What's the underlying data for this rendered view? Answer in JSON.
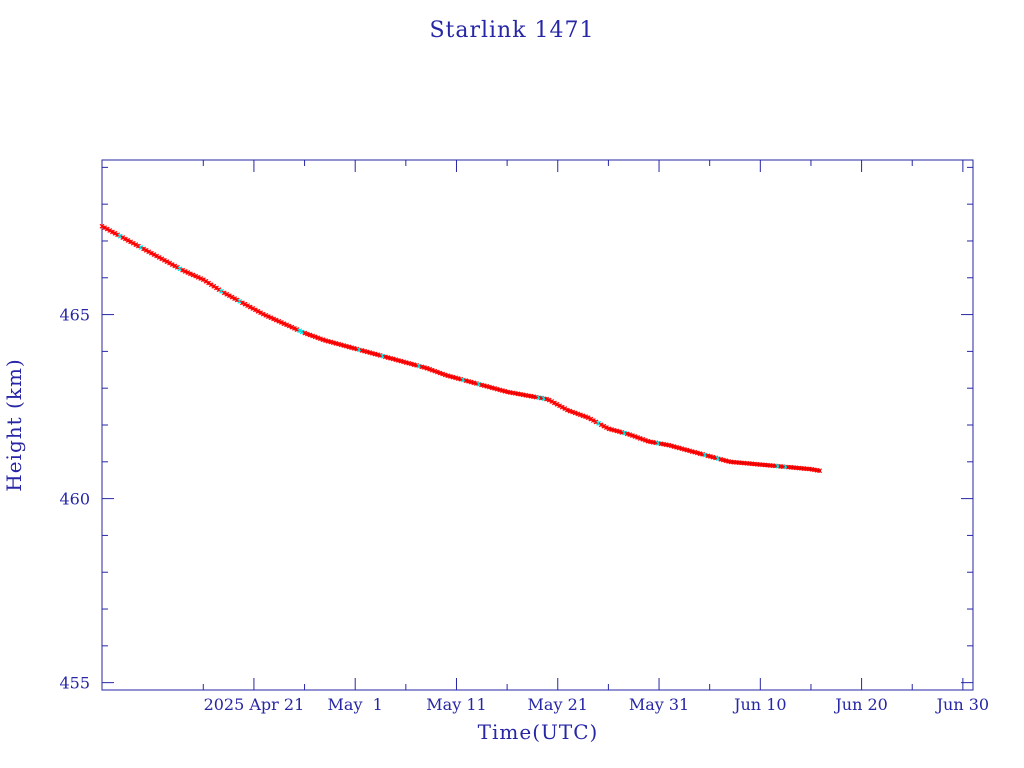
{
  "chart_data": {
    "type": "line",
    "title": "Starlink 1471",
    "xlabel": "Time(UTC)",
    "ylabel": "Height (km)",
    "xlim": [
      "2025-04-06",
      "2025-07-01"
    ],
    "ylim": [
      454.8,
      469.2
    ],
    "x_ticks": [
      {
        "date": "2025-04-21",
        "label": "2025 Apr 21"
      },
      {
        "date": "2025-05-01",
        "label": "May  1"
      },
      {
        "date": "2025-05-11",
        "label": "May 11"
      },
      {
        "date": "2025-05-21",
        "label": "May 21"
      },
      {
        "date": "2025-05-31",
        "label": "May 31"
      },
      {
        "date": "2025-06-10",
        "label": "Jun 10"
      },
      {
        "date": "2025-06-20",
        "label": "Jun 20"
      },
      {
        "date": "2025-06-30",
        "label": "Jun 30"
      }
    ],
    "y_ticks": [
      455,
      460,
      465
    ],
    "grid": false,
    "series": [
      {
        "x": [
          "2025-04-06",
          "2025-04-08",
          "2025-04-10",
          "2025-04-12",
          "2025-04-14",
          "2025-04-16",
          "2025-04-18",
          "2025-04-20",
          "2025-04-22",
          "2025-04-24",
          "2025-04-26",
          "2025-04-28",
          "2025-04-30",
          "2025-05-02",
          "2025-05-04",
          "2025-05-06",
          "2025-05-08",
          "2025-05-10",
          "2025-05-12",
          "2025-05-14",
          "2025-05-16",
          "2025-05-18",
          "2025-05-20",
          "2025-05-22",
          "2025-05-24",
          "2025-05-26",
          "2025-05-28",
          "2025-05-29",
          "2025-05-30",
          "2025-06-01",
          "2025-06-03",
          "2025-06-05",
          "2025-06-07",
          "2025-06-09",
          "2025-06-11",
          "2025-06-13",
          "2025-06-15",
          "2025-06-16"
        ],
        "values": [
          467.4,
          467.1,
          466.8,
          466.5,
          466.2,
          465.95,
          465.6,
          465.3,
          465.0,
          464.75,
          464.5,
          464.3,
          464.15,
          464.0,
          463.85,
          463.7,
          463.55,
          463.35,
          463.2,
          463.05,
          462.9,
          462.8,
          462.7,
          462.4,
          462.2,
          461.9,
          461.75,
          461.65,
          461.55,
          461.45,
          461.3,
          461.15,
          461.0,
          460.95,
          460.9,
          460.85,
          460.8,
          460.75
        ]
      }
    ],
    "colors": {
      "axes": "#2626a6",
      "line": "#000000",
      "marker_primary": "#ff0000",
      "marker_secondary": "#00e0e0"
    }
  }
}
